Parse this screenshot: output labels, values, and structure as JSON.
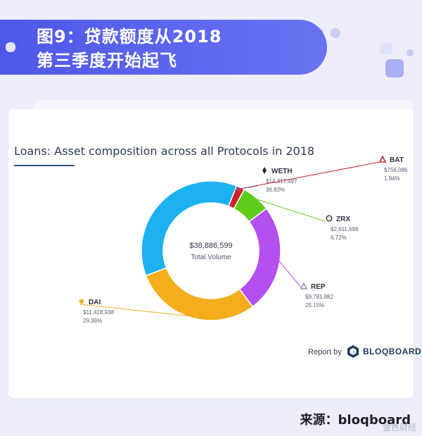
{
  "header": {
    "title_line1": "图9：贷款额度从2018",
    "title_line2": "第三季度开始起飞"
  },
  "chart_data": {
    "type": "pie",
    "donut": true,
    "title": "Loans: Asset composition across all Protocols in 2018",
    "center_value": "$38,886,599",
    "center_label": "Total Volume",
    "slices": [
      {
        "name": "WETH",
        "value_label": "$14,317,997",
        "value": 14317997,
        "percent_label": "36.82%",
        "percent": 36.82,
        "color": "#1eb1f2",
        "icon": "ethereum-icon"
      },
      {
        "name": "BAT",
        "value_label": "$756,086",
        "value": 756086,
        "percent_label": "1.94%",
        "percent": 1.94,
        "color": "#c9252c",
        "icon": "triangle-icon"
      },
      {
        "name": "ZRX",
        "value_label": "$2,611,696",
        "value": 2611696,
        "percent_label": "6.72%",
        "percent": 6.72,
        "color": "#5fcb1b",
        "icon": "zrx-icon"
      },
      {
        "name": "REP",
        "value_label": "$9,781,882",
        "value": 9781882,
        "percent_label": "25.15%",
        "percent": 25.15,
        "color": "#b44ff0",
        "icon": "augur-icon"
      },
      {
        "name": "DAI",
        "value_label": "$11,418,938",
        "value": 11418938,
        "percent_label": "29.36%",
        "percent": 29.36,
        "color": "#f5ad1c",
        "icon": "diamond-icon"
      }
    ]
  },
  "report": {
    "by_label": "Report by",
    "brand": "BLOQBOARD"
  },
  "footer": {
    "source": "来源：bloqboard",
    "watermark": "金色财经"
  },
  "colors": {
    "banner": "#5a62ee",
    "background": "#edeefa",
    "title_text": "#2e3a5c"
  }
}
